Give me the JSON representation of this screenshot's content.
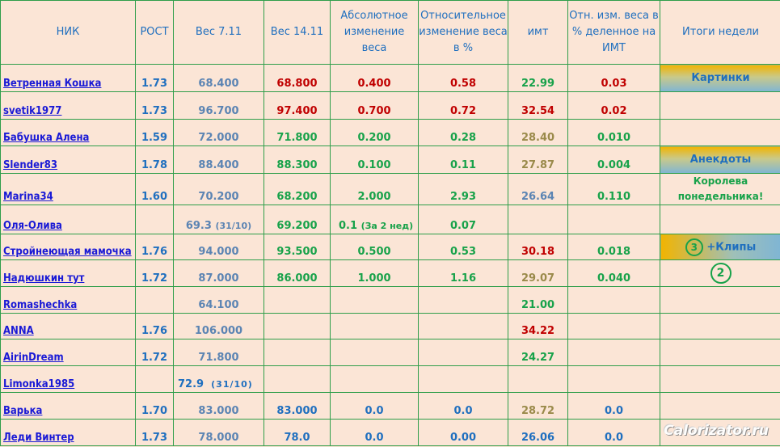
{
  "headers": [
    "НИК",
    "РОСТ",
    "Вес 7.11",
    "Вес 14.11",
    "Абсолютное изменение веса",
    "Относительное изменение веса в %",
    "имт",
    "Отн.  изм. веса в % деленное на ИМТ",
    "Итоги недели"
  ],
  "rows": [
    {
      "nick": "Ветренная Кошка",
      "height": "1.73",
      "w1": "68.400",
      "w2": "68.800",
      "abs": "0.400",
      "rel": "0.58",
      "bmi": "22.99",
      "ratio": "0.03",
      "result": "Картинки"
    },
    {
      "nick": "svetik1977",
      "height": "1.73",
      "w1": "96.700",
      "w2": "97.400",
      "abs": "0.700",
      "rel": "0.72",
      "bmi": "32.54",
      "ratio": "0.02",
      "result": ""
    },
    {
      "nick": "Бабушка Алена",
      "height": "1.59",
      "w1": "72.000",
      "w2": "71.800",
      "abs": "0.200",
      "rel": "0.28",
      "bmi": "28.40",
      "ratio": "0.010",
      "result": ""
    },
    {
      "nick": "Slender83",
      "height": "1.78",
      "w1": "88.400",
      "w2": "88.300",
      "abs": "0.100",
      "rel": "0.11",
      "bmi": "27.87",
      "ratio": "0.004",
      "result": "Анекдоты"
    },
    {
      "nick": "Marina34",
      "height": "1.60",
      "w1": "70.200",
      "w2": "68.200",
      "abs": "2.000",
      "rel": "2.93",
      "bmi": "26.64",
      "ratio": "0.110",
      "result": "Королева понедельника!"
    },
    {
      "nick": "Оля-Олива",
      "height": "",
      "w1": "69.3",
      "w1_note": "(31/10)",
      "w2": "69.200",
      "abs": "0.1",
      "abs_note": "(За 2 нед)",
      "rel": "0.07",
      "bmi": "",
      "ratio": "",
      "result": ""
    },
    {
      "nick": "Стройнеющая мамочка",
      "height": "1.76",
      "w1": "94.000",
      "w2": "93.500",
      "abs": "0.500",
      "rel": "0.53",
      "bmi": "30.18",
      "ratio": "0.018",
      "result_circle": "3",
      "result": "+Клипы"
    },
    {
      "nick": "Надюшкин тут",
      "height": "1.72",
      "w1": "87.000",
      "w2": "86.000",
      "abs": "1.000",
      "rel": "1.16",
      "bmi": "29.07",
      "ratio": "0.040",
      "result_circle": "2",
      "result": ""
    },
    {
      "nick": "Romashechka",
      "height": "",
      "w1": "64.100",
      "w2": "",
      "abs": "",
      "rel": "",
      "bmi": "21.00",
      "ratio": "",
      "result": ""
    },
    {
      "nick": "ANNA",
      "height": "1.76",
      "w1": "106.000",
      "w2": "",
      "abs": "",
      "rel": "",
      "bmi": "34.22",
      "ratio": "",
      "result": ""
    },
    {
      "nick": "AirinDream",
      "height": "1.72",
      "w1": "71.800",
      "w2": "",
      "abs": "",
      "rel": "",
      "bmi": "24.27",
      "ratio": "",
      "result": ""
    },
    {
      "nick": "Limonka1985",
      "height": "",
      "w1": "72.9",
      "w1_note": "(31/10)",
      "w2": "",
      "abs": "",
      "rel": "",
      "bmi": "",
      "ratio": "",
      "result": ""
    },
    {
      "nick": "Варька",
      "height": "1.70",
      "w1": "83.000",
      "w2": "83.000",
      "abs": "0.0",
      "rel": "0.0",
      "bmi": "28.72",
      "ratio": "0.0",
      "result": ""
    },
    {
      "nick": "Леди Винтер",
      "height": "1.73",
      "w1": "78.000",
      "w2": "78.0",
      "abs": "0.0",
      "rel": "0.00",
      "bmi": "26.06",
      "ratio": "0.0",
      "result": ""
    }
  ],
  "watermark": "Calorizator.ru"
}
